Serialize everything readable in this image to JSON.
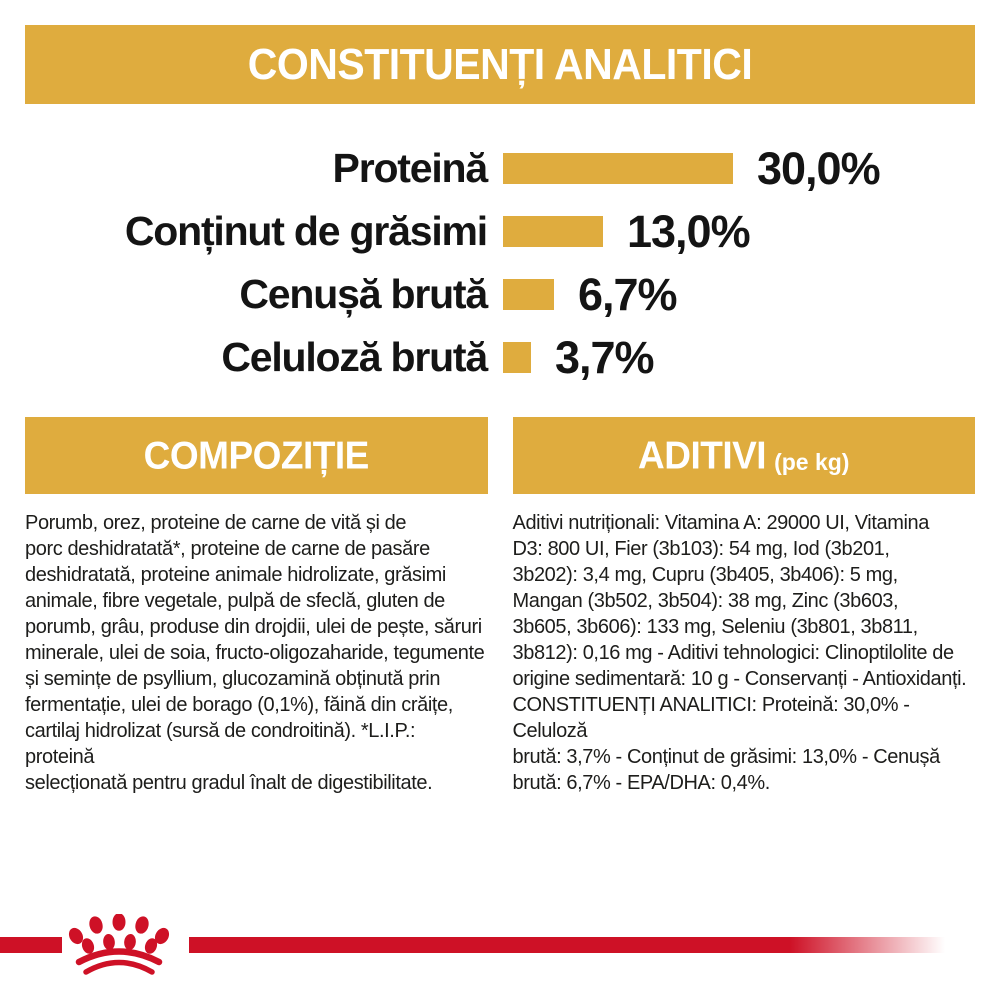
{
  "header": {
    "title": "CONSTITUENȚI ANALITICI",
    "banner_color": "#DFAC3E"
  },
  "chart_data": {
    "type": "bar",
    "orientation": "horizontal",
    "title": "CONSTITUENȚI ANALITICI",
    "categories": [
      "Proteină",
      "Conținut de grăsimi",
      "Cenușă brută",
      "Celuloză brută"
    ],
    "values": [
      30.0,
      13.0,
      6.7,
      3.7
    ],
    "value_labels": [
      "30,0%",
      "13,0%",
      "6,7%",
      "3,7%"
    ],
    "unit": "%",
    "xlim": [
      0,
      30
    ],
    "bar_color": "#DFAC3E",
    "grid": false,
    "legend": false
  },
  "composition": {
    "header": "COMPOZIȚIE",
    "text_lines": [
      "Porumb, orez, proteine de carne de vită și de",
      "porc deshidratată*, proteine de carne de pasăre",
      "deshidratată, proteine animale hidrolizate, grăsimi",
      "animale, fibre vegetale, pulpă de sfeclă, gluten de",
      "porumb, grâu, produse din drojdii, ulei de pește, săruri",
      "minerale, ulei de soia, fructo-oligozaharide, tegumente",
      "și semințe de psyllium, glucozamină obținută prin",
      "fermentație, ulei de borago (0,1%), făină din crăițe,",
      "cartilaj hidrolizat (sursă de condroitină). *L.I.P.: proteină",
      "selecționată pentru gradul înalt de digestibilitate."
    ]
  },
  "additives": {
    "header": "ADITIVI",
    "header_suffix": "(pe kg)",
    "text_lines": [
      "Aditivi nutriționali: Vitamina A: 29000 UI, Vitamina",
      "D3: 800 UI, Fier (3b103): 54 mg, Iod (3b201,",
      "3b202): 3,4 mg, Cupru (3b405, 3b406): 5 mg,",
      "Mangan (3b502, 3b504): 38 mg, Zinc (3b603,",
      "3b605, 3b606): 133 mg, Seleniu (3b801, 3b811,",
      "3b812): 0,16 mg - Aditivi tehnologici: Clinoptilolite de",
      "origine sedimentară: 10 g - Conservanți - Antioxidanți.",
      "CONSTITUENȚI ANALITICI: Proteină: 30,0% - Celuloză",
      "brută: 3,7% - Conținut de grăsimi: 13,0% - Cenușă",
      "brută: 6,7% - EPA/DHA: 0,4%."
    ]
  },
  "footer": {
    "logo": "royal-canin-crown-icon",
    "band_color": "#CE1126"
  }
}
